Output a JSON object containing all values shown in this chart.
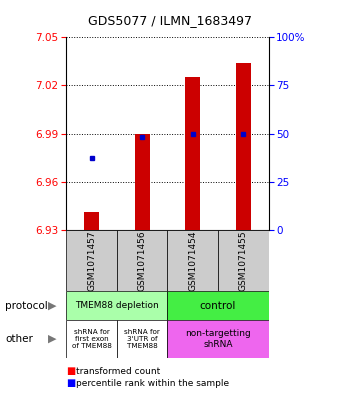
{
  "title": "GDS5077 / ILMN_1683497",
  "samples": [
    "GSM1071457",
    "GSM1071456",
    "GSM1071454",
    "GSM1071455"
  ],
  "ylim_left": [
    6.93,
    7.05
  ],
  "ylim_right": [
    0,
    100
  ],
  "yticks_left": [
    6.93,
    6.96,
    6.99,
    7.02,
    7.05
  ],
  "yticks_right": [
    0,
    25,
    50,
    75,
    100
  ],
  "ytick_labels_right": [
    "0",
    "25",
    "50",
    "75",
    "100%"
  ],
  "bar_bottoms": [
    6.93,
    6.93,
    6.93,
    6.93
  ],
  "bar_tops": [
    6.941,
    6.99,
    7.025,
    7.034
  ],
  "percentile_values": [
    37.5,
    48.5,
    50.0,
    50.0
  ],
  "bar_color": "#cc0000",
  "dot_color": "#0000cc",
  "protocol_labels": [
    "TMEM88 depletion",
    "control"
  ],
  "other_labels": [
    "shRNA for\nfirst exon\nof TMEM88",
    "shRNA for\n3'UTR of\nTMEM88",
    "non-targetting\nshRNA"
  ],
  "protocol_color_left": "#aaffaa",
  "protocol_color_right": "#44ee44",
  "other_color_left": "#ffffff",
  "other_color_right": "#ee66ee",
  "sample_bg_color": "#cccccc",
  "legend_red": "transformed count",
  "legend_blue": "percentile rank within the sample",
  "row_label_protocol": "protocol",
  "row_label_other": "other"
}
